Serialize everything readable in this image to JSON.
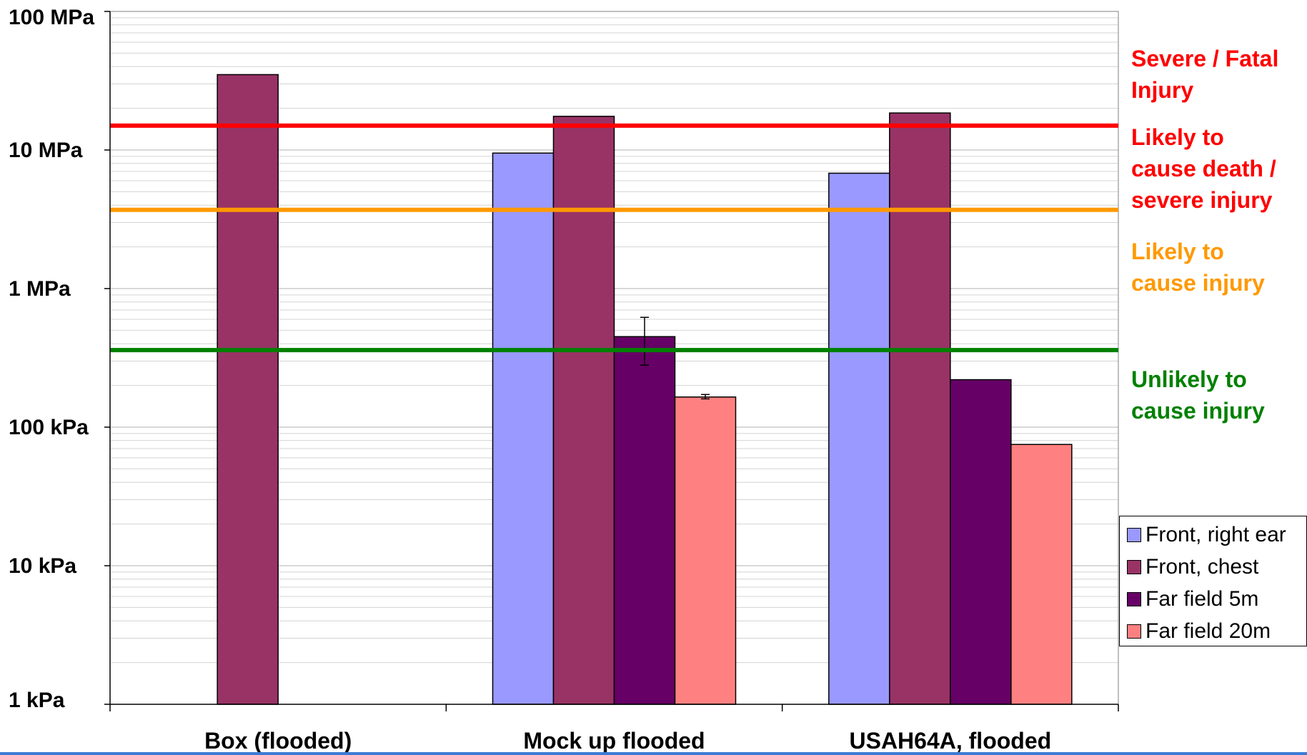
{
  "chart_data": {
    "type": "bar",
    "yscale": "log",
    "ylim_kPa": [
      1,
      100000
    ],
    "y_ticks": [
      {
        "value": 1,
        "label": "1 kPa"
      },
      {
        "value": 10,
        "label": "10 kPa"
      },
      {
        "value": 100,
        "label": "100 kPa"
      },
      {
        "value": 1000,
        "label": "1 MPa"
      },
      {
        "value": 10000,
        "label": "10 MPa"
      },
      {
        "value": 100000,
        "label": "100 MPa"
      }
    ],
    "categories": [
      "Box (flooded)",
      "Mock up flooded",
      "USAH64A, flooded"
    ],
    "series": [
      {
        "name": "Front, right ear",
        "color": "#9999ff",
        "values": [
          null,
          9500,
          6800
        ]
      },
      {
        "name": "Front, chest",
        "color": "#993366",
        "values": [
          35000,
          17500,
          18500
        ]
      },
      {
        "name": "Far field 5m",
        "color": "#660066",
        "values": [
          null,
          450,
          220
        ],
        "error": [
          null,
          [
            280,
            620
          ],
          null
        ]
      },
      {
        "name": "Far field 20m",
        "color": "#ff8080",
        "values": [
          null,
          165,
          75
        ],
        "error": [
          null,
          [
            160,
            172
          ],
          null
        ]
      }
    ],
    "thresholds": [
      {
        "value": 15000,
        "color": "#ff0000",
        "labels": [
          "Severe / Fatal Injury",
          "Likely to cause death / severe injury"
        ]
      },
      {
        "value": 3700,
        "color": "#ff9900",
        "labels": [
          "Likely to cause injury"
        ]
      },
      {
        "value": 360,
        "color": "#008000",
        "labels": [
          "Unlikely to cause injury"
        ]
      }
    ],
    "legend_position": "right",
    "grid": true
  },
  "annotations": {
    "severe": [
      "Severe / Fatal",
      "Injury"
    ],
    "death": [
      "Likely to",
      "cause death /",
      "severe injury"
    ],
    "injury": [
      "Likely to",
      "cause injury"
    ],
    "unlikely": [
      "Unlikely to",
      "cause injury"
    ]
  }
}
